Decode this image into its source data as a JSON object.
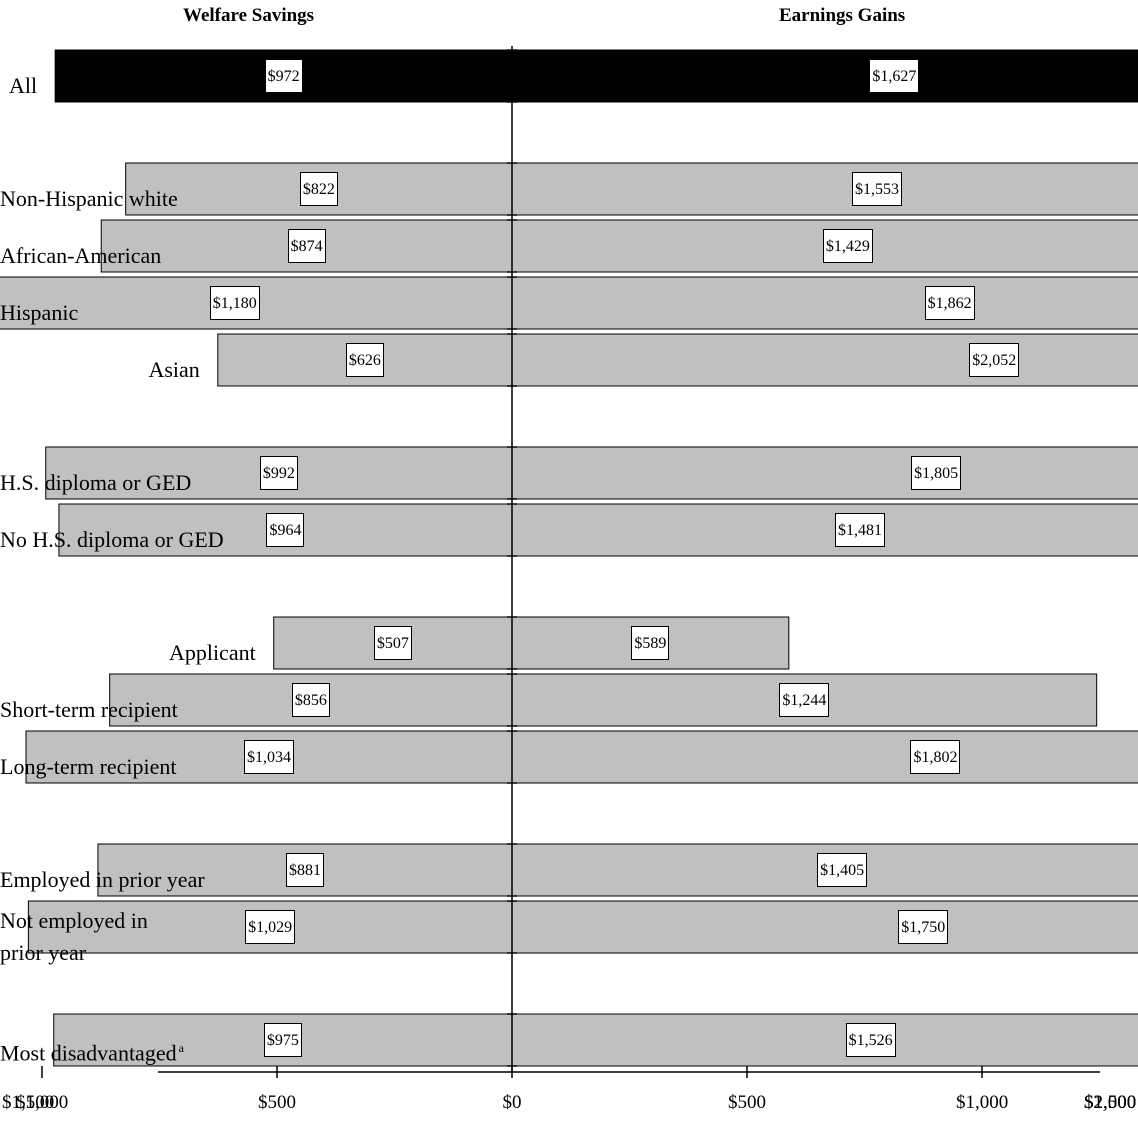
{
  "chart_data": {
    "type": "bar",
    "orientation": "horizontal",
    "layout": "butterfly",
    "headers": {
      "left": "Welfare Savings",
      "right": "Earnings Gains"
    },
    "categories": [
      "All",
      "Non-Hispanic white",
      "African-American",
      "Hispanic",
      "Asian",
      "H.S. diploma or GED",
      "No H.S. diploma or GED",
      "Applicant",
      "Short-term recipient",
      "Long-term recipient",
      "Employed in prior year",
      "Not employed in prior year",
      "Most disadvantaged"
    ],
    "category_lines": [
      [
        "All"
      ],
      [
        "Non-Hispanic white"
      ],
      [
        "African-American"
      ],
      [
        "Hispanic"
      ],
      [
        "Asian"
      ],
      [
        "H.S. diploma or GED"
      ],
      [
        "No H.S. diploma or GED"
      ],
      [
        "Applicant"
      ],
      [
        "Short-term recipient"
      ],
      [
        "Long-term recipient"
      ],
      [
        "Employed in prior year"
      ],
      [
        "Not employed in",
        "prior year"
      ],
      [
        "Most disadvantaged"
      ]
    ],
    "footnote_marker": "a",
    "footnote_category_index": 12,
    "highlight_index": 0,
    "series": [
      {
        "name": "Welfare Savings",
        "side": "left",
        "values": [
          972,
          822,
          874,
          1180,
          626,
          992,
          964,
          507,
          856,
          1034,
          881,
          1029,
          975
        ],
        "labels": [
          "$972",
          "$822",
          "$874",
          "$1,180",
          "$626",
          "$992",
          "$964",
          "$507",
          "$856",
          "$1,034",
          "$881",
          "$1,029",
          "$975"
        ]
      },
      {
        "name": "Earnings Gains",
        "side": "right",
        "values": [
          1627,
          1553,
          1429,
          1862,
          2052,
          1805,
          1481,
          589,
          1244,
          1802,
          1405,
          1750,
          1526
        ],
        "labels": [
          "$1,627",
          "$1,553",
          "$1,429",
          "$1,862",
          "$2,052",
          "$1,805",
          "$1,481",
          "$589",
          "$1,244",
          "$1,802",
          "$1,405",
          "$1,750",
          "$1,526"
        ]
      }
    ],
    "groups": [
      [
        0
      ],
      [
        1,
        2,
        3,
        4
      ],
      [
        5,
        6
      ],
      [
        7,
        8,
        9
      ],
      [
        10,
        11
      ],
      [
        12
      ]
    ],
    "xlim": [
      -1500,
      2500
    ],
    "xticks": [
      -1500,
      -1000,
      -500,
      0,
      500,
      1000,
      1500,
      2000,
      2500
    ],
    "xtick_labels": [
      "$1,500",
      "$1,000",
      "$500",
      "$0",
      "$500",
      "$1,000",
      "$1,500",
      "$2,000",
      "$2,500"
    ],
    "colors": {
      "highlight": "#000000",
      "bar": "#c0c0c0",
      "axis": "#000000",
      "label_bg": "#ffffff"
    },
    "grid": false,
    "legend": "none"
  }
}
